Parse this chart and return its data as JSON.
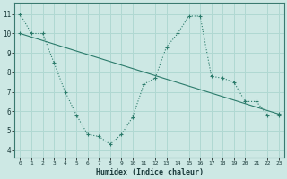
{
  "title": "",
  "xlabel": "Humidex (Indice chaleur)",
  "ylabel": "",
  "bg_color": "#cde8e4",
  "grid_color": "#b0d8d2",
  "line_color": "#2a7a6a",
  "xlim": [
    -0.5,
    23.5
  ],
  "ylim": [
    3.6,
    11.6
  ],
  "xticks": [
    0,
    1,
    2,
    3,
    4,
    5,
    6,
    7,
    8,
    9,
    10,
    11,
    12,
    13,
    14,
    15,
    16,
    17,
    18,
    19,
    20,
    21,
    22,
    23
  ],
  "yticks": [
    4,
    5,
    6,
    7,
    8,
    9,
    10,
    11
  ],
  "series1_x": [
    0,
    1,
    2,
    3,
    4,
    5,
    6,
    7,
    8,
    9,
    10,
    11,
    12,
    13,
    14,
    15,
    16,
    17,
    18,
    19,
    20,
    21,
    22,
    23
  ],
  "series1_y": [
    11.0,
    10.0,
    10.0,
    8.5,
    7.0,
    5.8,
    4.8,
    4.7,
    4.3,
    4.8,
    5.7,
    7.4,
    7.7,
    9.3,
    10.0,
    10.9,
    10.9,
    7.8,
    7.7,
    7.5,
    6.5,
    6.5,
    5.8,
    5.8
  ],
  "series2_x": [
    0,
    23
  ],
  "series2_y": [
    10.0,
    5.85
  ]
}
